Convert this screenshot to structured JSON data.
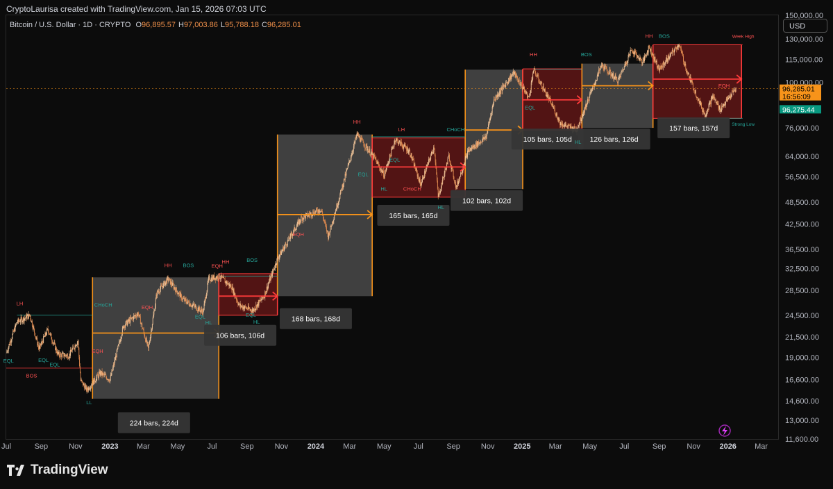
{
  "header": {
    "created_by": "CryptoLaurisa created with TradingView.com, Jan 15, 2026 07:03 UTC",
    "symbol": "Bitcoin / U.S. Dollar · 1D · CRYPTO",
    "ohlc": [
      {
        "label": "O",
        "value": "96,895.57"
      },
      {
        "label": "H",
        "value": "97,003.86"
      },
      {
        "label": "L",
        "value": "95,788.18"
      },
      {
        "label": "C",
        "value": "96,285.01"
      }
    ]
  },
  "currency_button": "USD",
  "brand": "TradingView",
  "colors": {
    "background": "#0c0c0c",
    "candle_up": "#f2c69a",
    "candle_down": "#e08a4f",
    "gray_zone": "#4a4a4a",
    "red_zone": "#5a1515",
    "orange_line": "#f7931a",
    "red_line": "#ff3b3b",
    "last_price_tag": "#f7931a",
    "bid_price_tag": "#089981"
  },
  "chart_data": {
    "type": "candlestick",
    "y_scale": "log",
    "ylim": [
      11600,
      150000
    ],
    "x_range": [
      "2022-07-01",
      "2026-03-31"
    ],
    "x_ticks": [
      {
        "label": "Jul",
        "date": "2022-07-01"
      },
      {
        "label": "Sep",
        "date": "2022-09-01"
      },
      {
        "label": "Nov",
        "date": "2022-11-01"
      },
      {
        "label": "2023",
        "date": "2023-01-01"
      },
      {
        "label": "Mar",
        "date": "2023-03-01"
      },
      {
        "label": "May",
        "date": "2023-05-01"
      },
      {
        "label": "Jul",
        "date": "2023-07-01"
      },
      {
        "label": "Sep",
        "date": "2023-09-01"
      },
      {
        "label": "Nov",
        "date": "2023-11-01"
      },
      {
        "label": "2024",
        "date": "2024-01-01"
      },
      {
        "label": "Mar",
        "date": "2024-03-01"
      },
      {
        "label": "May",
        "date": "2024-05-01"
      },
      {
        "label": "Jul",
        "date": "2024-07-01"
      },
      {
        "label": "Sep",
        "date": "2024-09-01"
      },
      {
        "label": "Nov",
        "date": "2024-11-01"
      },
      {
        "label": "2025",
        "date": "2025-01-01"
      },
      {
        "label": "Mar",
        "date": "2025-03-01"
      },
      {
        "label": "May",
        "date": "2025-05-01"
      },
      {
        "label": "Jul",
        "date": "2025-07-01"
      },
      {
        "label": "Sep",
        "date": "2025-09-01"
      },
      {
        "label": "Nov",
        "date": "2025-11-01"
      },
      {
        "label": "2026",
        "date": "2026-01-01"
      },
      {
        "label": "Mar",
        "date": "2026-03-01"
      }
    ],
    "y_ticks": [
      {
        "label": "150,000.00",
        "value": 150000
      },
      {
        "label": "130,000.00",
        "value": 130000
      },
      {
        "label": "115,000.00",
        "value": 115000
      },
      {
        "label": "100,000.00",
        "value": 100000
      },
      {
        "label": "76,000.00",
        "value": 76000
      },
      {
        "label": "64,000.00",
        "value": 64000
      },
      {
        "label": "56,500.00",
        "value": 56500
      },
      {
        "label": "48,500.00",
        "value": 48500
      },
      {
        "label": "42,500.00",
        "value": 42500
      },
      {
        "label": "36,500.00",
        "value": 36500
      },
      {
        "label": "32,500.00",
        "value": 32500
      },
      {
        "label": "28,500.00",
        "value": 28500
      },
      {
        "label": "24,500.00",
        "value": 24500
      },
      {
        "label": "21,500.00",
        "value": 21500
      },
      {
        "label": "19,000.00",
        "value": 19000
      },
      {
        "label": "16,600.00",
        "value": 16600
      },
      {
        "label": "14,600.00",
        "value": 14600
      },
      {
        "label": "13,000.00",
        "value": 13000
      },
      {
        "label": "11,600.00",
        "value": 11600
      }
    ],
    "price_path": [
      [
        "2022-07-01",
        19500
      ],
      [
        "2022-07-20",
        23500
      ],
      [
        "2022-08-12",
        24500
      ],
      [
        "2022-08-28",
        20000
      ],
      [
        "2022-09-13",
        22500
      ],
      [
        "2022-10-01",
        19300
      ],
      [
        "2022-10-20",
        19200
      ],
      [
        "2022-11-05",
        21000
      ],
      [
        "2022-11-10",
        16500
      ],
      [
        "2022-11-21",
        15600
      ],
      [
        "2022-12-15",
        17300
      ],
      [
        "2023-01-01",
        16600
      ],
      [
        "2023-01-25",
        23000
      ],
      [
        "2023-02-20",
        24800
      ],
      [
        "2023-03-10",
        20000
      ],
      [
        "2023-03-25",
        28000
      ],
      [
        "2023-04-14",
        30500
      ],
      [
        "2023-05-10",
        27000
      ],
      [
        "2023-06-15",
        25000
      ],
      [
        "2023-06-25",
        30500
      ],
      [
        "2023-07-14",
        31000
      ],
      [
        "2023-08-05",
        29000
      ],
      [
        "2023-08-18",
        26000
      ],
      [
        "2023-09-11",
        25200
      ],
      [
        "2023-10-01",
        27500
      ],
      [
        "2023-10-25",
        34500
      ],
      [
        "2023-12-06",
        44000
      ],
      [
        "2024-01-10",
        46500
      ],
      [
        "2024-01-23",
        39500
      ],
      [
        "2024-02-15",
        52000
      ],
      [
        "2024-03-14",
        73000
      ],
      [
        "2024-04-15",
        63000
      ],
      [
        "2024-05-01",
        57000
      ],
      [
        "2024-05-21",
        71000
      ],
      [
        "2024-06-15",
        66000
      ],
      [
        "2024-07-05",
        54000
      ],
      [
        "2024-07-29",
        68000
      ],
      [
        "2024-08-05",
        50000
      ],
      [
        "2024-08-24",
        64000
      ],
      [
        "2024-09-06",
        53000
      ],
      [
        "2024-09-27",
        66000
      ],
      [
        "2024-10-29",
        72000
      ],
      [
        "2024-11-12",
        90000
      ],
      [
        "2024-12-17",
        106000
      ],
      [
        "2025-01-13",
        91000
      ],
      [
        "2025-01-21",
        108000
      ],
      [
        "2025-02-25",
        86000
      ],
      [
        "2025-03-10",
        78000
      ],
      [
        "2025-04-07",
        75000
      ],
      [
        "2025-05-22",
        111000
      ],
      [
        "2025-06-20",
        101000
      ],
      [
        "2025-07-14",
        122000
      ],
      [
        "2025-08-03",
        113000
      ],
      [
        "2025-08-14",
        124000
      ],
      [
        "2025-09-01",
        108000
      ],
      [
        "2025-10-06",
        126000
      ],
      [
        "2025-10-20",
        107000
      ],
      [
        "2025-11-21",
        82000
      ],
      [
        "2025-12-05",
        92000
      ],
      [
        "2025-12-18",
        85000
      ],
      [
        "2026-01-15",
        96285
      ]
    ],
    "price_lines": [
      {
        "name": "last",
        "value": 96285.01,
        "color": "#f7931a",
        "style": "dashed"
      }
    ],
    "price_tags": [
      {
        "label": "96,285.01",
        "value": 96285.01,
        "offset": 0,
        "bg": "#f7931a",
        "fg": "#000000"
      },
      {
        "label": "16:56:09",
        "value": 96285.01,
        "offset": 11,
        "bg": "#f7931a",
        "fg": "#000000"
      },
      {
        "label": "96,275.44",
        "value": 85000,
        "offset": 0,
        "bg": "#089981",
        "fg": "#ffffff"
      }
    ],
    "zones": [
      {
        "type": "gray",
        "start": "2022-12-01",
        "end": "2023-07-13",
        "top": 30800,
        "bottom": 14800,
        "midline": 22000,
        "bars_label": "224 bars, 224d",
        "label_date": "2023-03-20",
        "label_price": 12800
      },
      {
        "type": "red",
        "start": "2023-07-13",
        "end": "2023-10-25",
        "top": 31500,
        "bottom": 24500,
        "midline": 27500,
        "bars_label": "106 bars, 106d",
        "label_date": "2023-08-20",
        "label_price": 21700
      },
      {
        "type": "gray",
        "start": "2023-10-25",
        "end": "2024-04-10",
        "top": 73000,
        "bottom": 27500,
        "midline": 45000,
        "bars_label": "168 bars, 168d",
        "label_date": "2024-01-01",
        "label_price": 24000
      },
      {
        "type": "red",
        "start": "2024-04-10",
        "end": "2024-09-22",
        "top": 71500,
        "bottom": 50000,
        "midline": 60000,
        "bars_label": "165 bars, 165d",
        "label_date": "2024-06-22",
        "label_price": 44800
      },
      {
        "type": "gray",
        "start": "2024-09-22",
        "end": "2025-01-02",
        "top": 108000,
        "bottom": 52500,
        "midline": 75000,
        "bars_label": "102 bars, 102d",
        "label_date": "2024-10-30",
        "label_price": 49000
      },
      {
        "type": "red",
        "start": "2025-01-02",
        "end": "2025-04-17",
        "top": 108500,
        "bottom": 75000,
        "midline": 90000,
        "bars_label": "105 bars, 105d",
        "label_date": "2025-02-15",
        "label_price": 71000
      },
      {
        "type": "gray",
        "start": "2025-04-17",
        "end": "2025-08-21",
        "top": 112000,
        "bottom": 76000,
        "midline": 98000,
        "bars_label": "126 bars, 126d",
        "label_date": "2025-06-13",
        "label_price": 71000
      },
      {
        "type": "red",
        "start": "2025-08-21",
        "end": "2026-01-25",
        "top": 125500,
        "bottom": 80500,
        "midline": 102000,
        "bars_label": "157 bars, 157d",
        "label_date": "2025-11-01",
        "label_price": 76000
      }
    ],
    "structure_lines": [
      {
        "from": [
          "2022-07-20",
          24500
        ],
        "to": [
          "2022-12-01",
          24500
        ],
        "color": "#26a69a"
      },
      {
        "from": [
          "2022-07-01",
          17800
        ],
        "to": [
          "2022-12-01",
          17800
        ],
        "color": "#ff3b3b"
      },
      {
        "from": [
          "2023-07-13",
          31000
        ],
        "to": [
          "2023-10-25",
          31000
        ],
        "color": "#26a69a"
      },
      {
        "from": [
          "2024-04-10",
          72000
        ],
        "to": [
          "2024-09-22",
          72000
        ],
        "color": "#26a69a"
      },
      {
        "from": [
          "2025-01-21",
          108200
        ],
        "to": [
          "2025-04-17",
          108200
        ],
        "color": "#26a69a"
      },
      {
        "from": [
          "2025-10-06",
          125600
        ],
        "to": [
          "2026-01-27",
          125600
        ],
        "color": "#ff3b3b"
      },
      {
        "from": [
          "2025-11-21",
          80500
        ],
        "to": [
          "2026-01-27",
          80500
        ],
        "color": "#26a69a"
      }
    ],
    "annotations": [
      {
        "text": "LH",
        "date": "2022-07-25",
        "price": 26000,
        "color": "#ff5252"
      },
      {
        "text": "EQL",
        "date": "2022-07-05",
        "price": 18400,
        "color": "#26a69a"
      },
      {
        "text": "BOS",
        "date": "2022-08-15",
        "price": 16800,
        "color": "#ff5252"
      },
      {
        "text": "EQL",
        "date": "2022-09-05",
        "price": 18500,
        "color": "#26a69a"
      },
      {
        "text": "EQL",
        "date": "2022-09-25",
        "price": 18000,
        "color": "#26a69a"
      },
      {
        "text": "CHoCH",
        "date": "2022-12-20",
        "price": 25800,
        "color": "#26a69a"
      },
      {
        "text": "LL",
        "date": "2022-11-25",
        "price": 14300,
        "color": "#26a69a"
      },
      {
        "text": "EQH",
        "date": "2023-03-08",
        "price": 25400,
        "color": "#ff5252"
      },
      {
        "text": "EQH",
        "date": "2022-12-10",
        "price": 19500,
        "color": "#ff5252"
      },
      {
        "text": "HH",
        "date": "2023-04-14",
        "price": 32800,
        "color": "#ff5252"
      },
      {
        "text": "BOS",
        "date": "2023-05-20",
        "price": 32800,
        "color": "#26a69a"
      },
      {
        "text": "EQL",
        "date": "2023-06-10",
        "price": 24000,
        "color": "#26a69a"
      },
      {
        "text": "HL",
        "date": "2023-06-25",
        "price": 23200,
        "color": "#26a69a"
      },
      {
        "text": "EQH",
        "date": "2023-07-10",
        "price": 32600,
        "color": "#ff5252"
      },
      {
        "text": "HH",
        "date": "2023-07-25",
        "price": 33500,
        "color": "#ff5252"
      },
      {
        "text": "BOS",
        "date": "2023-09-10",
        "price": 33800,
        "color": "#26a69a"
      },
      {
        "text": "EQL",
        "date": "2023-09-08",
        "price": 24300,
        "color": "#26a69a"
      },
      {
        "text": "HL",
        "date": "2023-09-18",
        "price": 23300,
        "color": "#26a69a"
      },
      {
        "text": "EQH",
        "date": "2023-12-01",
        "price": 39500,
        "color": "#ff5252"
      },
      {
        "text": "HH",
        "date": "2024-03-14",
        "price": 78000,
        "color": "#ff5252"
      },
      {
        "text": "EQL",
        "date": "2024-03-25",
        "price": 56800,
        "color": "#26a69a"
      },
      {
        "text": "LH",
        "date": "2024-06-01",
        "price": 74500,
        "color": "#ff5252"
      },
      {
        "text": "EQL",
        "date": "2024-05-20",
        "price": 62000,
        "color": "#26a69a"
      },
      {
        "text": "HL",
        "date": "2024-05-01",
        "price": 52000,
        "color": "#26a69a"
      },
      {
        "text": "CHoCH",
        "date": "2024-06-20",
        "price": 52000,
        "color": "#ff5252"
      },
      {
        "text": "CHoCH",
        "date": "2024-09-05",
        "price": 74500,
        "color": "#26a69a"
      },
      {
        "text": "HL",
        "date": "2024-08-10",
        "price": 46500,
        "color": "#26a69a"
      },
      {
        "text": "HH",
        "date": "2025-01-21",
        "price": 117000,
        "color": "#ff5252"
      },
      {
        "text": "BOS",
        "date": "2025-04-25",
        "price": 117000,
        "color": "#26a69a"
      },
      {
        "text": "EQL",
        "date": "2025-01-15",
        "price": 85000,
        "color": "#26a69a"
      },
      {
        "text": "HL",
        "date": "2025-04-10",
        "price": 69000,
        "color": "#26a69a"
      },
      {
        "text": "HH",
        "date": "2025-08-14",
        "price": 131000,
        "color": "#ff5252"
      },
      {
        "text": "BOS",
        "date": "2025-09-10",
        "price": 131000,
        "color": "#26a69a"
      },
      {
        "text": "EQH",
        "date": "2025-12-25",
        "price": 97000,
        "color": "#ff5252"
      },
      {
        "text": "Week High",
        "date": "2026-01-28",
        "price": 131000,
        "color": "#ff5252"
      },
      {
        "text": "Strong Low",
        "date": "2026-01-28",
        "price": 77000,
        "color": "#26a69a"
      }
    ]
  }
}
